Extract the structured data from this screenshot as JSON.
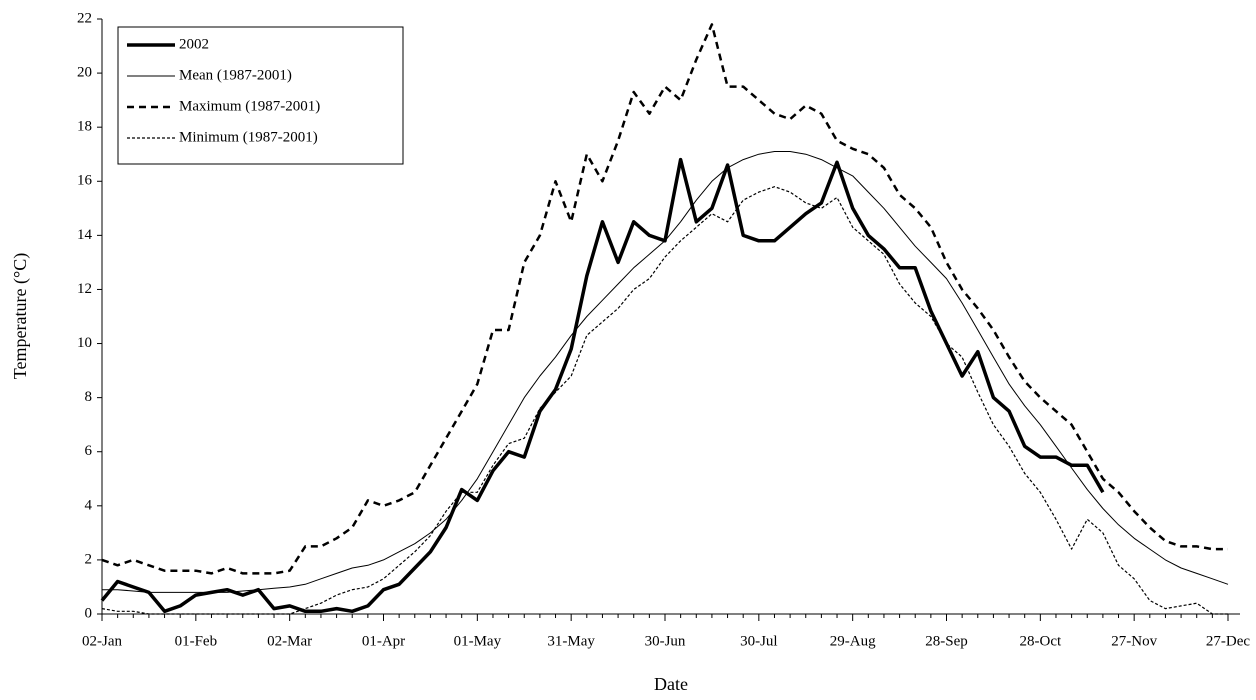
{
  "chart_data": {
    "type": "line",
    "x_label": "Date",
    "y_label": "Temperature (°C)",
    "categories": [
      "02-Jan",
      null,
      null,
      null,
      null,
      null,
      "01-Feb",
      null,
      null,
      null,
      null,
      null,
      "02-Mar",
      null,
      null,
      null,
      null,
      null,
      "01-Apr",
      null,
      null,
      null,
      null,
      null,
      "01-May",
      null,
      null,
      null,
      null,
      null,
      "31-May",
      null,
      null,
      null,
      null,
      null,
      "30-Jun",
      null,
      null,
      null,
      null,
      null,
      "30-Jul",
      null,
      null,
      null,
      null,
      null,
      "29-Aug",
      null,
      null,
      null,
      null,
      null,
      "28-Sep",
      null,
      null,
      null,
      null,
      null,
      "28-Oct",
      null,
      null,
      null,
      null,
      null,
      "27-Nov",
      null,
      null,
      null,
      null,
      null,
      "27-Dec"
    ],
    "ylim": [
      0,
      22
    ],
    "yticks": [
      0,
      2,
      4,
      6,
      8,
      10,
      12,
      14,
      16,
      18,
      20,
      22
    ],
    "grid": false,
    "legend": "top-left",
    "series": [
      {
        "name": "2002",
        "color": "#000000",
        "style": "thick",
        "values": [
          0.5,
          1.2,
          1.0,
          0.8,
          0.1,
          0.3,
          0.7,
          0.8,
          0.9,
          0.7,
          0.9,
          0.2,
          0.3,
          0.1,
          0.1,
          0.2,
          0.1,
          0.3,
          0.9,
          1.1,
          1.7,
          2.3,
          3.2,
          4.6,
          4.2,
          5.3,
          6.0,
          5.8,
          7.5,
          8.3,
          9.8,
          12.5,
          14.5,
          13.0,
          14.5,
          14.0,
          13.8,
          16.8,
          14.5,
          15.0,
          16.6,
          14.0,
          13.8,
          13.8,
          14.3,
          14.8,
          15.2,
          16.7,
          15.0,
          14.0,
          13.5,
          12.8,
          12.8,
          11.2,
          10.0,
          8.8,
          9.7,
          8.0,
          7.5,
          6.2,
          5.8,
          5.8,
          5.5,
          5.5,
          4.5,
          null,
          null,
          null,
          null,
          null,
          null,
          null,
          null
        ]
      },
      {
        "name": "Mean (1987-2001)",
        "color": "#000000",
        "style": "solid",
        "values": [
          0.9,
          0.9,
          0.85,
          0.8,
          0.8,
          0.8,
          0.8,
          0.8,
          0.8,
          0.85,
          0.9,
          0.95,
          1.0,
          1.1,
          1.3,
          1.5,
          1.7,
          1.8,
          2.0,
          2.3,
          2.6,
          3.0,
          3.5,
          4.2,
          5.0,
          6.0,
          7.0,
          8.0,
          8.8,
          9.5,
          10.3,
          11.0,
          11.6,
          12.2,
          12.8,
          13.3,
          13.8,
          14.5,
          15.3,
          16.0,
          16.5,
          16.8,
          17.0,
          17.1,
          17.1,
          17.0,
          16.8,
          16.5,
          16.2,
          15.6,
          15.0,
          14.3,
          13.6,
          13.0,
          12.4,
          11.5,
          10.5,
          9.5,
          8.5,
          7.7,
          7.0,
          6.2,
          5.4,
          4.6,
          3.9,
          3.3,
          2.8,
          2.4,
          2.0,
          1.7,
          1.5,
          1.3,
          1.1
        ]
      },
      {
        "name": "Maximum (1987-2001)",
        "color": "#000000",
        "style": "dashed",
        "values": [
          2.0,
          1.8,
          2.0,
          1.8,
          1.6,
          1.6,
          1.6,
          1.5,
          1.7,
          1.5,
          1.5,
          1.5,
          1.6,
          2.5,
          2.5,
          2.8,
          3.2,
          4.2,
          4.0,
          4.2,
          4.5,
          5.5,
          6.5,
          7.5,
          8.5,
          10.5,
          10.5,
          13.0,
          14.0,
          16.0,
          14.5,
          17.0,
          16.0,
          17.5,
          19.3,
          18.5,
          19.5,
          19.0,
          20.5,
          21.8,
          19.5,
          19.5,
          19.0,
          18.5,
          18.3,
          18.8,
          18.5,
          17.5,
          17.2,
          17.0,
          16.5,
          15.5,
          15.0,
          14.3,
          13.0,
          12.0,
          11.3,
          10.5,
          9.5,
          8.6,
          8.0,
          7.5,
          7.0,
          6.0,
          5.0,
          4.5,
          3.8,
          3.2,
          2.7,
          2.5,
          2.5,
          2.4,
          2.4
        ]
      },
      {
        "name": "Minimum (1987-2001)",
        "color": "#000000",
        "style": "dotted",
        "values": [
          0.2,
          0.1,
          0.1,
          0.0,
          0.0,
          0.0,
          0.0,
          0.0,
          0.0,
          0.0,
          0.0,
          0.0,
          0.0,
          0.2,
          0.4,
          0.7,
          0.9,
          1.0,
          1.3,
          1.8,
          2.3,
          2.9,
          3.8,
          4.5,
          4.5,
          5.5,
          6.3,
          6.5,
          7.6,
          8.2,
          8.8,
          10.3,
          10.8,
          11.3,
          12.0,
          12.4,
          13.2,
          13.8,
          14.3,
          14.8,
          14.5,
          15.3,
          15.6,
          15.8,
          15.6,
          15.2,
          15.0,
          15.4,
          14.3,
          13.8,
          13.3,
          12.2,
          11.5,
          11.0,
          10.0,
          9.5,
          8.2,
          7.0,
          6.2,
          5.2,
          4.5,
          3.5,
          2.4,
          3.5,
          3.0,
          1.8,
          1.3,
          0.5,
          0.2,
          0.3,
          0.4,
          0.0,
          0.0
        ]
      }
    ]
  }
}
